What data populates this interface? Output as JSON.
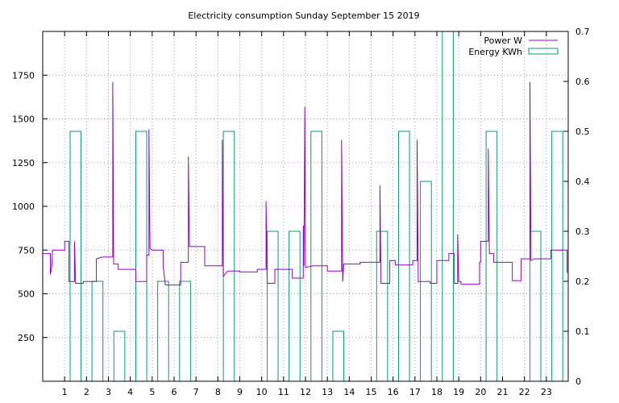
{
  "chart_data": {
    "type": "line",
    "title": "Electricity consumption Sunday September 15 2019",
    "x": {
      "min": 0,
      "max": 24,
      "ticks": [
        1,
        2,
        3,
        4,
        5,
        6,
        7,
        8,
        9,
        10,
        11,
        12,
        13,
        14,
        15,
        16,
        17,
        18,
        19,
        20,
        21,
        22,
        23
      ],
      "grid": true
    },
    "y_left": {
      "min": 0,
      "max": 2000,
      "ticks": [
        250,
        500,
        750,
        1000,
        1250,
        1500,
        1750
      ],
      "grid": true
    },
    "y_right": {
      "min": 0,
      "max": 0.7,
      "ticks": [
        0,
        0.1,
        0.2,
        0.3,
        0.4,
        0.5,
        0.6,
        0.7
      ]
    },
    "legend": {
      "placement": "top-right"
    },
    "series": [
      {
        "name": "Power W",
        "axis": "left",
        "style": "step-line",
        "color": "#9400d3",
        "points": [
          [
            0,
            730
          ],
          [
            0.35,
            730
          ],
          [
            0.35,
            610
          ],
          [
            0.42,
            660
          ],
          [
            0.45,
            750
          ],
          [
            1.0,
            750
          ],
          [
            1.0,
            800
          ],
          [
            1.2,
            800
          ],
          [
            1.2,
            570
          ],
          [
            1.45,
            570
          ],
          [
            1.45,
            800
          ],
          [
            1.5,
            560
          ],
          [
            1.85,
            560
          ],
          [
            1.85,
            570
          ],
          [
            2.45,
            570
          ],
          [
            2.45,
            700
          ],
          [
            2.7,
            710
          ],
          [
            3.2,
            710
          ],
          [
            3.2,
            1710
          ],
          [
            3.24,
            670
          ],
          [
            3.45,
            670
          ],
          [
            3.45,
            640
          ],
          [
            4.25,
            640
          ],
          [
            4.25,
            570
          ],
          [
            4.75,
            570
          ],
          [
            4.75,
            720
          ],
          [
            4.85,
            720
          ],
          [
            4.85,
            1440
          ],
          [
            4.9,
            760
          ],
          [
            5.0,
            750
          ],
          [
            5.5,
            750
          ],
          [
            5.5,
            660
          ],
          [
            5.6,
            550
          ],
          [
            6.3,
            550
          ],
          [
            6.3,
            680
          ],
          [
            6.65,
            680
          ],
          [
            6.65,
            1285
          ],
          [
            6.7,
            770
          ],
          [
            7.4,
            770
          ],
          [
            7.4,
            660
          ],
          [
            8.2,
            660
          ],
          [
            8.2,
            1380
          ],
          [
            8.25,
            600
          ],
          [
            8.45,
            630
          ],
          [
            9.0,
            630
          ],
          [
            9.0,
            625
          ],
          [
            9.8,
            625
          ],
          [
            9.8,
            640
          ],
          [
            10.2,
            640
          ],
          [
            10.2,
            1030
          ],
          [
            10.25,
            560
          ],
          [
            10.6,
            560
          ],
          [
            10.6,
            640
          ],
          [
            11.4,
            640
          ],
          [
            11.4,
            590
          ],
          [
            11.9,
            590
          ],
          [
            11.9,
            890
          ],
          [
            11.93,
            660
          ],
          [
            11.97,
            1570
          ],
          [
            12.0,
            650
          ],
          [
            12.35,
            660
          ],
          [
            13.0,
            660
          ],
          [
            13.0,
            630
          ],
          [
            13.65,
            630
          ],
          [
            13.65,
            1380
          ],
          [
            13.7,
            570
          ],
          [
            13.75,
            670
          ],
          [
            14.5,
            670
          ],
          [
            14.5,
            680
          ],
          [
            15.4,
            680
          ],
          [
            15.4,
            1120
          ],
          [
            15.45,
            560
          ],
          [
            15.85,
            560
          ],
          [
            15.85,
            690
          ],
          [
            16.1,
            690
          ],
          [
            16.1,
            665
          ],
          [
            16.9,
            665
          ],
          [
            16.9,
            690
          ],
          [
            17.1,
            690
          ],
          [
            17.1,
            1380
          ],
          [
            17.15,
            570
          ],
          [
            17.7,
            570
          ],
          [
            17.7,
            560
          ],
          [
            18.0,
            560
          ],
          [
            18.0,
            690
          ],
          [
            18.55,
            690
          ],
          [
            18.55,
            730
          ],
          [
            18.8,
            730
          ],
          [
            18.8,
            560
          ],
          [
            18.95,
            560
          ],
          [
            18.95,
            840
          ],
          [
            19.0,
            570
          ],
          [
            19.1,
            570
          ],
          [
            19.1,
            555
          ],
          [
            19.95,
            555
          ],
          [
            19.95,
            680
          ],
          [
            20.0,
            680
          ],
          [
            20.0,
            800
          ],
          [
            20.35,
            800
          ],
          [
            20.35,
            1330
          ],
          [
            20.4,
            730
          ],
          [
            20.6,
            730
          ],
          [
            20.6,
            680
          ],
          [
            21.45,
            680
          ],
          [
            21.45,
            575
          ],
          [
            21.85,
            575
          ],
          [
            21.85,
            700
          ],
          [
            22.25,
            700
          ],
          [
            22.25,
            1710
          ],
          [
            22.3,
            690
          ],
          [
            22.45,
            700
          ],
          [
            23.2,
            700
          ],
          [
            23.2,
            750
          ],
          [
            23.95,
            750
          ],
          [
            23.95,
            620
          ]
        ]
      },
      {
        "name": "Energy KWh",
        "axis": "right",
        "style": "hour-boxes",
        "color": "#009e73",
        "values": [
          0,
          0.5,
          0.2,
          0.1,
          0.5,
          0.2,
          0.2,
          0,
          0.5,
          0,
          0.3,
          0.3,
          0.5,
          0.1,
          0,
          0.3,
          0.5,
          0.4,
          0.7,
          0,
          0.5,
          0,
          0.3,
          0.5
        ]
      }
    ]
  }
}
